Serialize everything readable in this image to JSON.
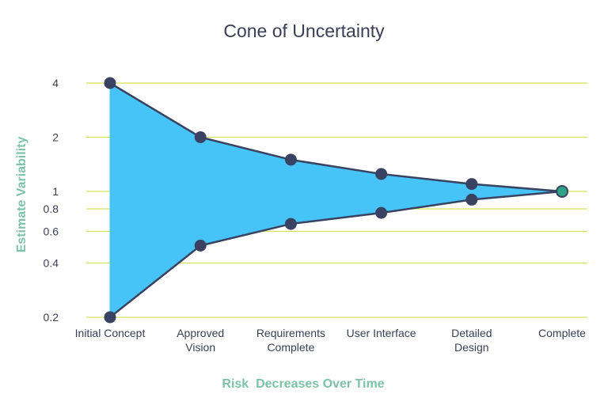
{
  "chart_data": {
    "type": "area",
    "title": "Cone of Uncertainty",
    "xlabel": "Risk  Decreases Over Time",
    "ylabel": "Estimate Variability",
    "y_scale": "log",
    "ylim": [
      0.2,
      4
    ],
    "yticks": [
      0.2,
      0.4,
      0.6,
      0.8,
      1,
      2,
      4
    ],
    "grid": true,
    "categories": [
      [
        "Initial Concept"
      ],
      [
        "Approved",
        "Vision"
      ],
      [
        "Requirements",
        "Complete"
      ],
      [
        "User Interface"
      ],
      [
        "Detailed",
        "Design"
      ],
      [
        "Complete"
      ]
    ],
    "series": [
      {
        "values": [
          4,
          2,
          1.5,
          1.25,
          1.1,
          1
        ]
      },
      {
        "values": [
          0.2,
          0.5,
          0.66,
          0.76,
          0.9,
          1
        ]
      }
    ],
    "colors": {
      "fill": "#47c4f7",
      "line": "#394361",
      "marker": "#394361",
      "end_marker": "#2fa389",
      "grid": "#d4e157",
      "axis_title": "#7cc3a5"
    }
  }
}
